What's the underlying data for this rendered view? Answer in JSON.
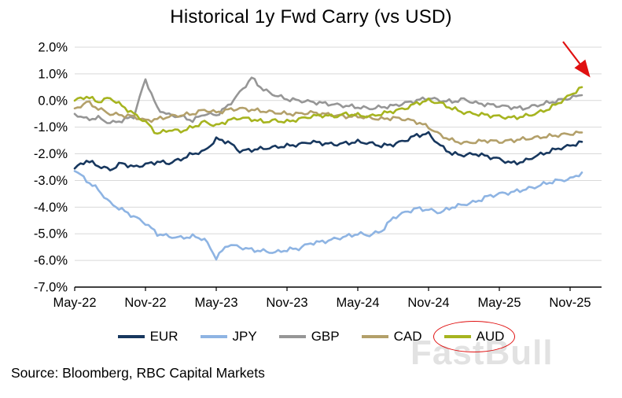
{
  "chart": {
    "title": "Historical 1y Fwd Carry (vs USD)",
    "source": "Source: Bloomberg, RBC Capital Markets",
    "watermark": "FastBull"
  },
  "chart_data": {
    "type": "line",
    "title": "Historical 1y Fwd Carry (vs USD)",
    "x_unit": "month",
    "x_tick_labels": [
      "May-22",
      "Nov-22",
      "May-23",
      "Nov-23",
      "May-24",
      "Nov-24",
      "May-25",
      "Nov-25"
    ],
    "x_tick_positions": [
      0,
      6,
      12,
      18,
      24,
      30,
      36,
      42
    ],
    "y_tick_labels": [
      "2.0%",
      "1.0%",
      "0.0%",
      "-1.0%",
      "-2.0%",
      "-3.0%",
      "-4.0%",
      "-5.0%",
      "-6.0%",
      "-7.0%"
    ],
    "y_tick_values": [
      2,
      1,
      0,
      -1,
      -2,
      -3,
      -4,
      -5,
      -6,
      -7
    ],
    "ylim": [
      -7,
      2
    ],
    "grid": "horizontal",
    "legend_position": "bottom",
    "highlighted_series": "AUD",
    "annotations": [
      {
        "type": "arrow",
        "color": "#e01010",
        "target": "AUD line end (top right)"
      },
      {
        "type": "ellipse",
        "color": "#e01010",
        "target": "AUD legend entry"
      }
    ],
    "series": [
      {
        "name": "EUR",
        "color": "#17375e",
        "values": [
          -2.55,
          -2.25,
          -2.45,
          -2.6,
          -2.35,
          -2.5,
          -2.4,
          -2.3,
          -2.35,
          -2.2,
          -2.0,
          -1.9,
          -1.45,
          -1.55,
          -1.9,
          -1.85,
          -1.8,
          -1.75,
          -1.7,
          -1.65,
          -1.55,
          -1.6,
          -1.65,
          -1.6,
          -1.55,
          -1.6,
          -1.7,
          -1.65,
          -1.5,
          -1.3,
          -1.25,
          -1.7,
          -2.0,
          -2.05,
          -2.0,
          -2.1,
          -2.2,
          -2.35,
          -2.3,
          -2.1,
          -1.95,
          -1.8,
          -1.7,
          -1.55
        ]
      },
      {
        "name": "JPY",
        "color": "#8eb4e3",
        "values": [
          -2.6,
          -3.0,
          -3.35,
          -3.85,
          -4.1,
          -4.35,
          -4.6,
          -5.0,
          -5.1,
          -5.15,
          -5.1,
          -5.2,
          -5.9,
          -5.4,
          -5.5,
          -5.6,
          -5.65,
          -5.7,
          -5.6,
          -5.55,
          -5.35,
          -5.3,
          -5.2,
          -5.1,
          -5.0,
          -5.05,
          -4.9,
          -4.4,
          -4.2,
          -4.05,
          -4.1,
          -4.2,
          -4.0,
          -3.9,
          -3.8,
          -3.6,
          -3.5,
          -3.45,
          -3.35,
          -3.25,
          -3.1,
          -3.0,
          -2.95,
          -2.7
        ]
      },
      {
        "name": "GBP",
        "color": "#969696",
        "values": [
          -0.5,
          -0.7,
          -0.65,
          -0.85,
          -0.75,
          -0.6,
          0.8,
          -0.3,
          -0.55,
          -0.6,
          -0.75,
          -0.5,
          -0.55,
          -0.2,
          0.3,
          0.85,
          0.4,
          0.2,
          0.05,
          0.0,
          -0.05,
          -0.1,
          -0.15,
          -0.2,
          -0.25,
          -0.3,
          -0.25,
          -0.2,
          -0.1,
          0.0,
          0.1,
          0.0,
          -0.05,
          0.05,
          -0.1,
          -0.15,
          -0.2,
          -0.25,
          -0.3,
          -0.2,
          -0.1,
          0.0,
          0.1,
          0.2
        ]
      },
      {
        "name": "CAD",
        "color": "#b3a06a",
        "values": [
          -0.35,
          -0.05,
          -0.3,
          -0.5,
          -0.55,
          -0.6,
          -0.75,
          -0.7,
          -0.6,
          -0.55,
          -0.5,
          -0.35,
          -0.45,
          -0.35,
          -0.3,
          -0.35,
          -0.4,
          -0.45,
          -0.5,
          -0.5,
          -0.45,
          -0.5,
          -0.55,
          -0.6,
          -0.6,
          -0.65,
          -0.7,
          -0.65,
          -0.7,
          -0.8,
          -1.0,
          -1.3,
          -1.5,
          -1.6,
          -1.55,
          -1.5,
          -1.55,
          -1.5,
          -1.45,
          -1.4,
          -1.35,
          -1.3,
          -1.25,
          -1.2
        ]
      },
      {
        "name": "AUD",
        "color": "#a6b41f",
        "values": [
          0.0,
          0.15,
          -0.05,
          0.1,
          -0.2,
          -0.5,
          -0.8,
          -1.25,
          -1.1,
          -1.15,
          -1.0,
          -0.8,
          -0.95,
          -0.75,
          -0.65,
          -0.7,
          -0.8,
          -0.75,
          -0.8,
          -0.7,
          -0.6,
          -0.55,
          -0.6,
          -0.5,
          -0.55,
          -0.6,
          -0.5,
          -0.4,
          -0.3,
          -0.1,
          0.0,
          -0.1,
          -0.3,
          -0.45,
          -0.5,
          -0.55,
          -0.6,
          -0.65,
          -0.6,
          -0.5,
          -0.35,
          -0.1,
          0.2,
          0.5
        ]
      }
    ]
  }
}
